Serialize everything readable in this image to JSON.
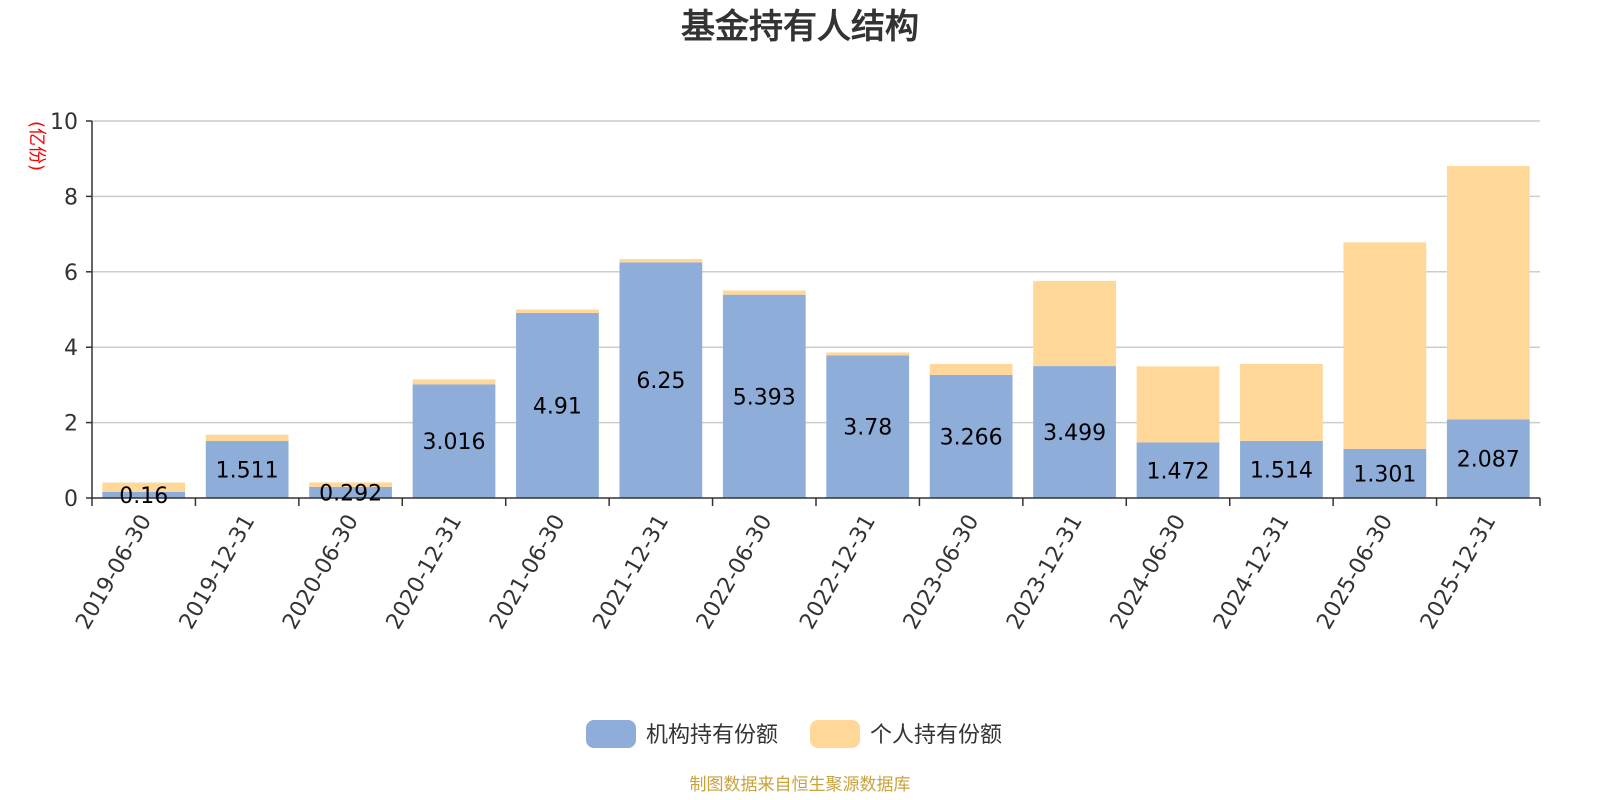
{
  "chart_data": {
    "type": "bar",
    "stacked": true,
    "title": "基金持有人结构",
    "unit_label": "(亿份)",
    "categories": [
      "2019-06-30",
      "2019-12-31",
      "2020-06-30",
      "2020-12-31",
      "2021-06-30",
      "2021-12-31",
      "2022-06-30",
      "2022-12-31",
      "2023-06-30",
      "2023-12-31",
      "2024-06-30",
      "2024-12-31",
      "2025-06-30",
      "2025-12-31"
    ],
    "series": [
      {
        "name": "机构持有份额",
        "color": "#8eadd9",
        "values": [
          0.16,
          1.511,
          0.292,
          3.016,
          4.91,
          6.25,
          5.393,
          3.78,
          3.266,
          3.499,
          1.472,
          1.514,
          1.301,
          2.087
        ],
        "labels": [
          "0.16",
          "1.511",
          "0.292",
          "3.016",
          "4.91",
          "6.25",
          "5.393",
          "3.78",
          "3.266",
          "3.499",
          "1.472",
          "1.514",
          "1.301",
          "2.087"
        ]
      },
      {
        "name": "个人持有份额",
        "color": "#ffd899",
        "values": [
          0.25,
          0.17,
          0.12,
          0.13,
          0.09,
          0.09,
          0.11,
          0.08,
          0.29,
          2.26,
          2.02,
          2.04,
          5.48,
          6.72
        ]
      }
    ],
    "ylim": [
      0,
      10
    ],
    "yticks": [
      0,
      2,
      4,
      6,
      8,
      10
    ],
    "grid": true,
    "legend_position": "bottom"
  },
  "source_note": "制图数据来自恒生聚源数据库"
}
